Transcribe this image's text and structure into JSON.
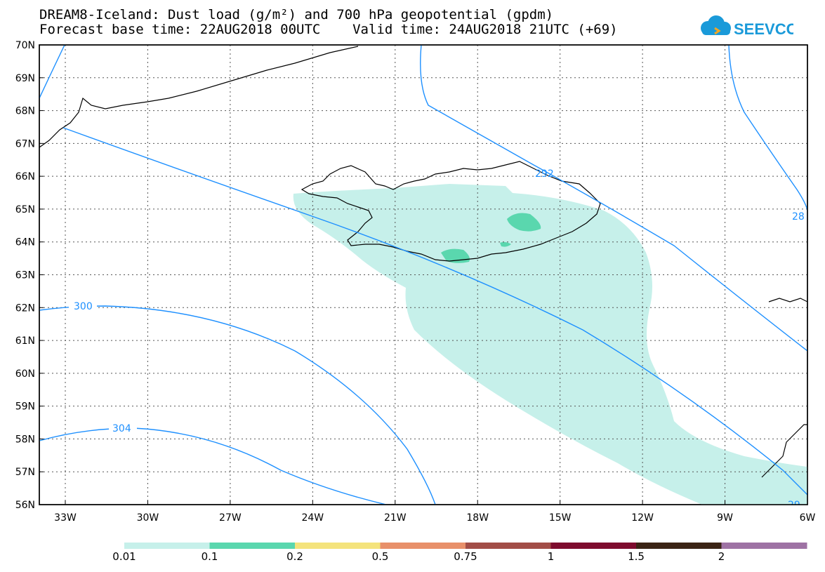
{
  "title": {
    "line1": "DREAM8-Iceland: Dust load (g/m²) and 700 hPa geopotential (gpdm)",
    "line2": "Forecast base time: 22AUG2018 00UTC    Valid time: 24AUG2018 21UTC (+69)"
  },
  "logo": {
    "text": "SEEVCCC",
    "icon": "cloud-icon",
    "color": "#1a9ad9"
  },
  "map": {
    "lat_labels": [
      "70N",
      "69N",
      "68N",
      "67N",
      "66N",
      "65N",
      "64N",
      "63N",
      "62N",
      "61N",
      "60N",
      "59N",
      "58N",
      "57N",
      "56N"
    ],
    "lon_labels": [
      "33W",
      "30W",
      "27W",
      "24W",
      "21W",
      "18W",
      "15W",
      "12W",
      "9W",
      "6W"
    ],
    "contour_labels": [
      {
        "text": "300"
      },
      {
        "text": "304"
      },
      {
        "text": "292"
      },
      {
        "text": "28"
      },
      {
        "text": "29"
      }
    ],
    "colors": {
      "contour": "#1e90ff",
      "coast": "#000000",
      "grid": "#555555"
    }
  },
  "colorbar": {
    "labels": [
      "0.01",
      "0.1",
      "0.2",
      "0.5",
      "0.75",
      "1",
      "1.5",
      "2"
    ],
    "colors": [
      "#c6f0ea",
      "#5ad7ae",
      "#f4e37c",
      "#e8906a",
      "#a24d47",
      "#7e0b2e",
      "#3b2415",
      "#9e72a4"
    ]
  }
}
